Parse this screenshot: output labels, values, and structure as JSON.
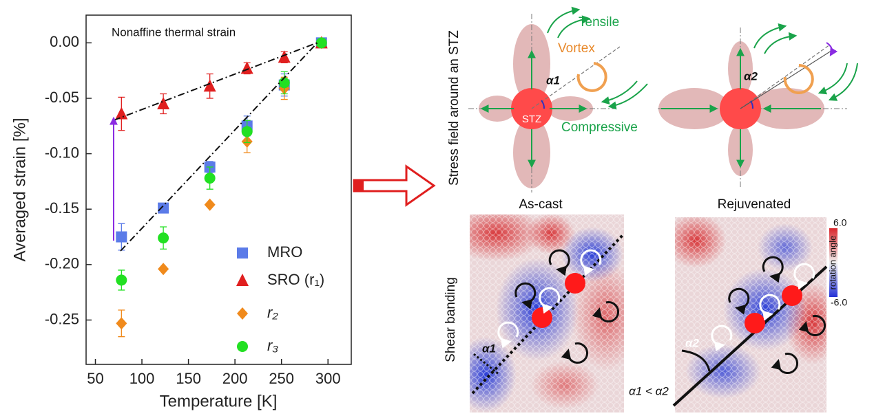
{
  "chart_data": {
    "type": "scatter",
    "annotation": "Nonaffine thermal strain",
    "xlabel": "Temperature [K]",
    "ylabel": "Averaged strain [%]",
    "x": [
      78,
      123,
      173,
      213,
      253,
      293
    ],
    "series": [
      {
        "name": "MRO",
        "color": "#5b7be8",
        "marker": "square",
        "values": [
          -0.175,
          -0.149,
          -0.112,
          -0.075,
          -0.038,
          0
        ],
        "errors": [
          0.012,
          0.003,
          0.005,
          0.009,
          0.01,
          0
        ]
      },
      {
        "name": "SRO (r₁)",
        "color": "#e01f1f",
        "marker": "triangle",
        "values": [
          -0.064,
          -0.055,
          -0.039,
          -0.023,
          -0.013,
          0
        ],
        "errors": [
          0.015,
          0.009,
          0.011,
          0.005,
          0.005,
          0
        ]
      },
      {
        "name": "r₂",
        "color": "#f08a1c",
        "marker": "diamond",
        "values": [
          -0.253,
          -0.204,
          -0.146,
          -0.089,
          -0.041,
          0
        ],
        "errors": [
          0.012,
          0,
          0,
          0.01,
          0.01,
          0
        ]
      },
      {
        "name": "r₃",
        "color": "#22e022",
        "marker": "circle",
        "values": [
          -0.214,
          -0.176,
          -0.122,
          -0.08,
          -0.036,
          0
        ],
        "errors": [
          0.009,
          0.01,
          0.01,
          0.01,
          0.01,
          0
        ]
      }
    ],
    "xlim": [
      40,
      325
    ],
    "ylim": [
      -0.29,
      0.025
    ],
    "xticks": [
      50,
      100,
      150,
      200,
      250,
      300
    ],
    "yticks": [
      {
        "value": 0,
        "label": "0.00"
      },
      -0.05,
      {
        "value": -0.1,
        "label": "-0.10"
      },
      -0.15,
      {
        "value": -0.2,
        "label": "-0.20"
      },
      -0.25
    ],
    "legend": "lower right"
  },
  "diagram": {
    "stress_label": "Stress field around an STZ",
    "tensile": "Tensile",
    "vortex": "Vortex",
    "compressive": "Compressive",
    "stz": "STZ",
    "alpha1": "α1",
    "alpha2": "α2",
    "as_cast": "As-cast",
    "rejuvenated": "Rejuvenated",
    "shear_banding": "Shear banding",
    "cbar_max": "6.0",
    "cbar_min": "-6.0",
    "cbar_label": "rotation angle",
    "panel_alpha1": "α1",
    "panel_alpha2": "α2",
    "compare": "α1 < α2"
  }
}
